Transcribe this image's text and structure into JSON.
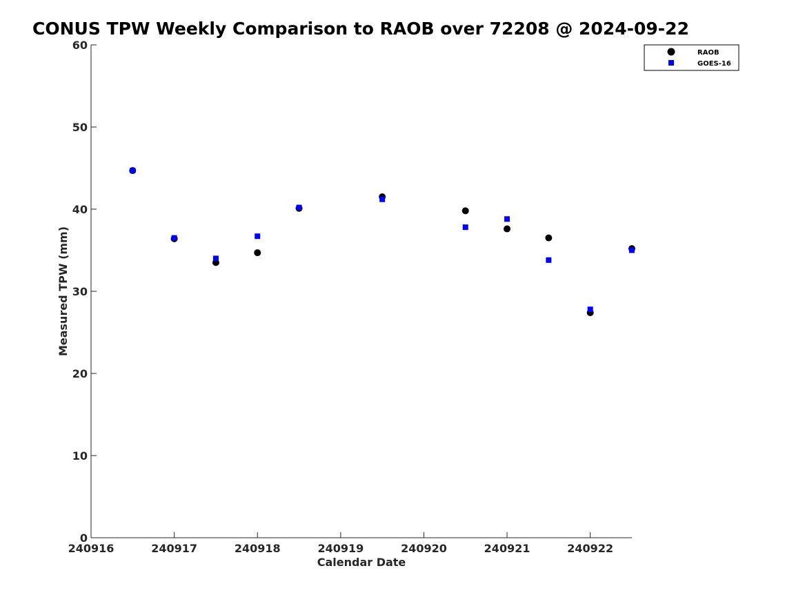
{
  "chart_data": {
    "type": "scatter",
    "title": "CONUS TPW Weekly Comparison to RAOB over 72208 @ 2024-09-22",
    "xlabel": "Calendar Date",
    "ylabel": "Measured TPW (mm)",
    "xlim": [
      240916,
      240922.5
    ],
    "ylim": [
      0,
      60
    ],
    "xticks": [
      240916,
      240917,
      240918,
      240919,
      240920,
      240921,
      240922
    ],
    "yticks": [
      0,
      10,
      20,
      30,
      40,
      50,
      60
    ],
    "grid": false,
    "legend_position": "top-right",
    "series": [
      {
        "name": "RAOB",
        "marker": "circle",
        "color": "#000000",
        "x": [
          240916.5,
          240917,
          240917.5,
          240918,
          240918.5,
          240919.5,
          240920.5,
          240921,
          240921.5,
          240922,
          240922.5
        ],
        "y": [
          44.7,
          36.4,
          33.5,
          34.7,
          40.1,
          41.5,
          39.8,
          37.6,
          36.5,
          27.4,
          35.2
        ]
      },
      {
        "name": "GOES-16",
        "marker": "square",
        "color": "#0000ff",
        "x": [
          240916.5,
          240917,
          240917.5,
          240918,
          240918.5,
          240919.5,
          240920.5,
          240921,
          240921.5,
          240922,
          240922.5
        ],
        "y": [
          44.7,
          36.5,
          34.0,
          36.7,
          40.2,
          41.2,
          37.8,
          38.8,
          33.8,
          27.8,
          35.0
        ]
      }
    ]
  }
}
